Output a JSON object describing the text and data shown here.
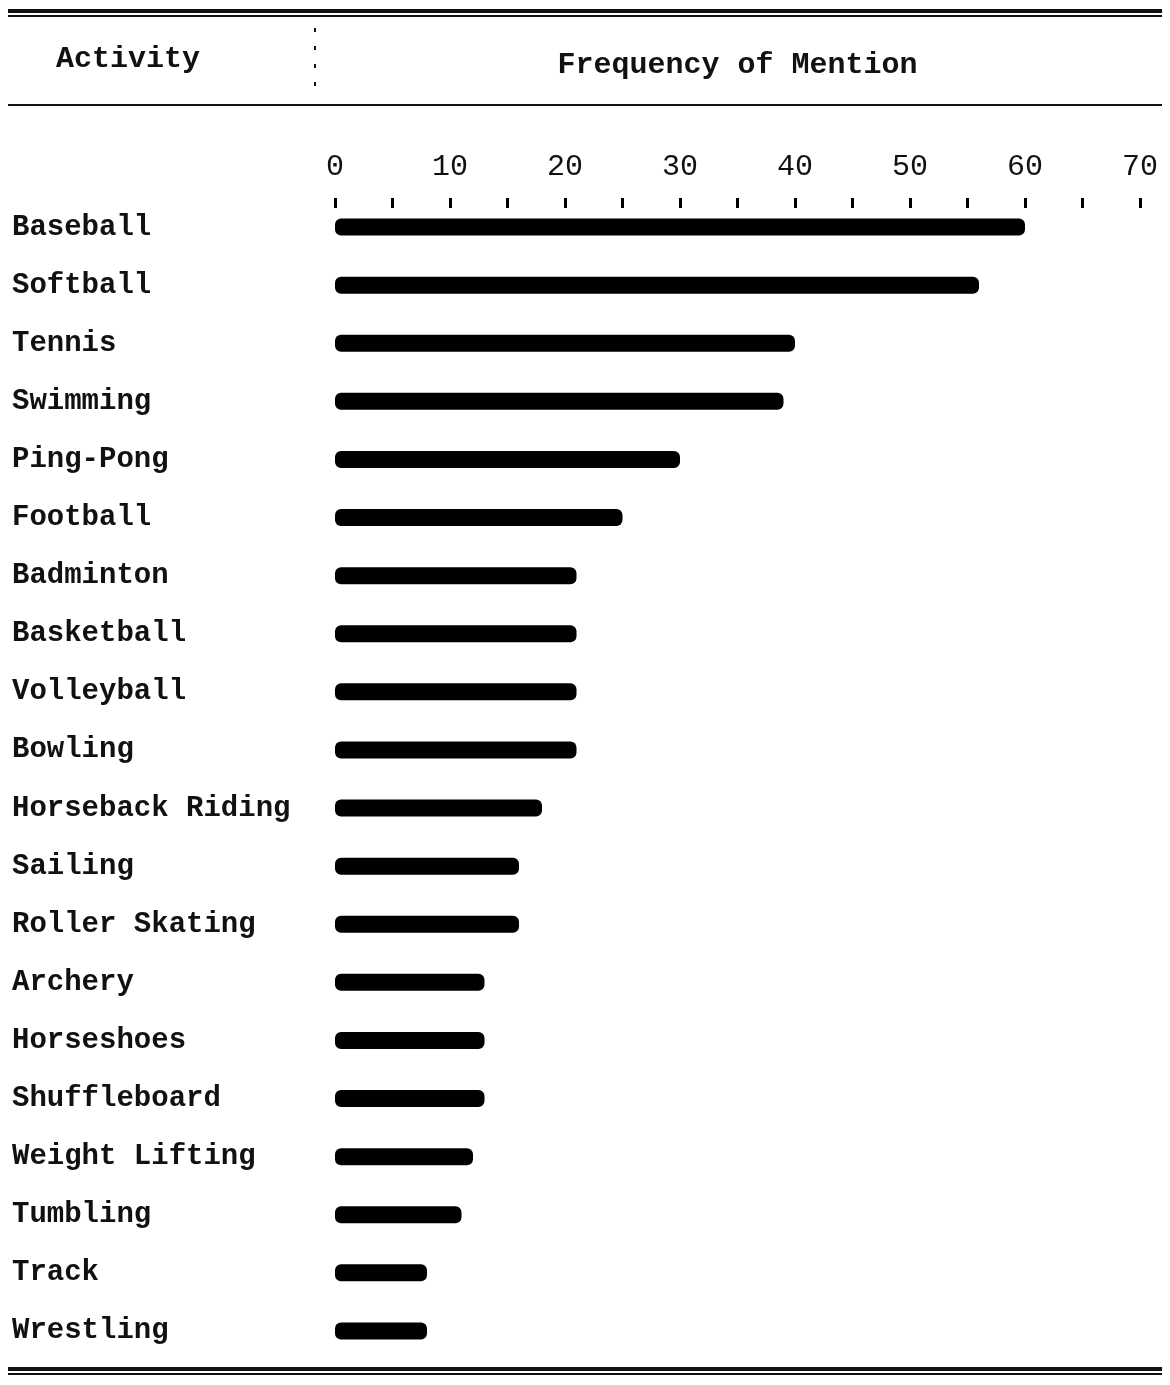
{
  "chart_data": {
    "type": "bar",
    "orientation": "horizontal",
    "xlabel": "Frequency of Mention",
    "ylabel": "Activity",
    "categories": [
      "Baseball",
      "Softball",
      "Tennis",
      "Swimming",
      "Ping-Pong",
      "Football",
      "Badminton",
      "Basketball",
      "Volleyball",
      "Bowling",
      "Horseback Riding",
      "Sailing",
      "Roller Skating",
      "Archery",
      "Horseshoes",
      "Shuffleboard",
      "Weight Lifting",
      "Tumbling",
      "Track",
      "Wrestling"
    ],
    "values": [
      60,
      56,
      40,
      39,
      30,
      25,
      21,
      21,
      21,
      21,
      18,
      16,
      16,
      13,
      13,
      13,
      12,
      11,
      8,
      8
    ],
    "color": "#000000",
    "xlim": [
      0,
      70
    ],
    "xticks": [
      0,
      {
        "value": 5,
        "label": null
      },
      10,
      {
        "value": 15,
        "label": null
      },
      20,
      {
        "value": 25,
        "label": null
      },
      30,
      {
        "value": 35,
        "label": null
      },
      40,
      {
        "value": 45,
        "label": null
      },
      50,
      {
        "value": 55,
        "label": null
      },
      60,
      {
        "value": 65,
        "label": null
      },
      70
    ],
    "grid": false
  }
}
